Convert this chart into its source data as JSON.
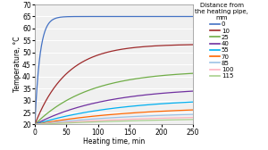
{
  "title": "",
  "xlabel": "Heating time, min",
  "ylabel": "Temperature, °C",
  "xlim": [
    0,
    250
  ],
  "ylim": [
    20,
    70
  ],
  "yticks": [
    20,
    25,
    30,
    35,
    40,
    45,
    50,
    55,
    60,
    65,
    70
  ],
  "xticks": [
    0,
    50,
    100,
    150,
    200,
    250
  ],
  "legend_title": "Distance from\nthe heating pipe,\nmm",
  "series": [
    {
      "label": "0",
      "color": "#4472C4",
      "T_start": 20,
      "T_end": 65.0,
      "tau": 8
    },
    {
      "label": "10",
      "color": "#9E2A2B",
      "T_start": 20,
      "T_end": 53.5,
      "tau": 50
    },
    {
      "label": "25",
      "color": "#70AD47",
      "T_start": 20,
      "T_end": 42.5,
      "tau": 85
    },
    {
      "label": "40",
      "color": "#7030A0",
      "T_start": 20,
      "T_end": 35.5,
      "tau": 110
    },
    {
      "label": "55",
      "color": "#00B0F0",
      "T_start": 20,
      "T_end": 31.0,
      "tau": 130
    },
    {
      "label": "70",
      "color": "#FF6600",
      "T_start": 20,
      "T_end": 27.5,
      "tau": 150
    },
    {
      "label": "85",
      "color": "#9DC3E6",
      "T_start": 20,
      "T_end": 25.5,
      "tau": 170
    },
    {
      "label": "100",
      "color": "#FFB3C1",
      "T_start": 20,
      "T_end": 24.0,
      "tau": 190
    },
    {
      "label": "115",
      "color": "#A9D18E",
      "T_start": 20,
      "T_end": 23.0,
      "tau": 210
    }
  ],
  "background_color": "#FFFFFF",
  "plot_bg_color": "#F0F0F0",
  "grid_color": "#FFFFFF",
  "fontsize": 5.5,
  "legend_fontsize": 5.0,
  "figsize": [
    3.0,
    1.68
  ],
  "dpi": 100
}
